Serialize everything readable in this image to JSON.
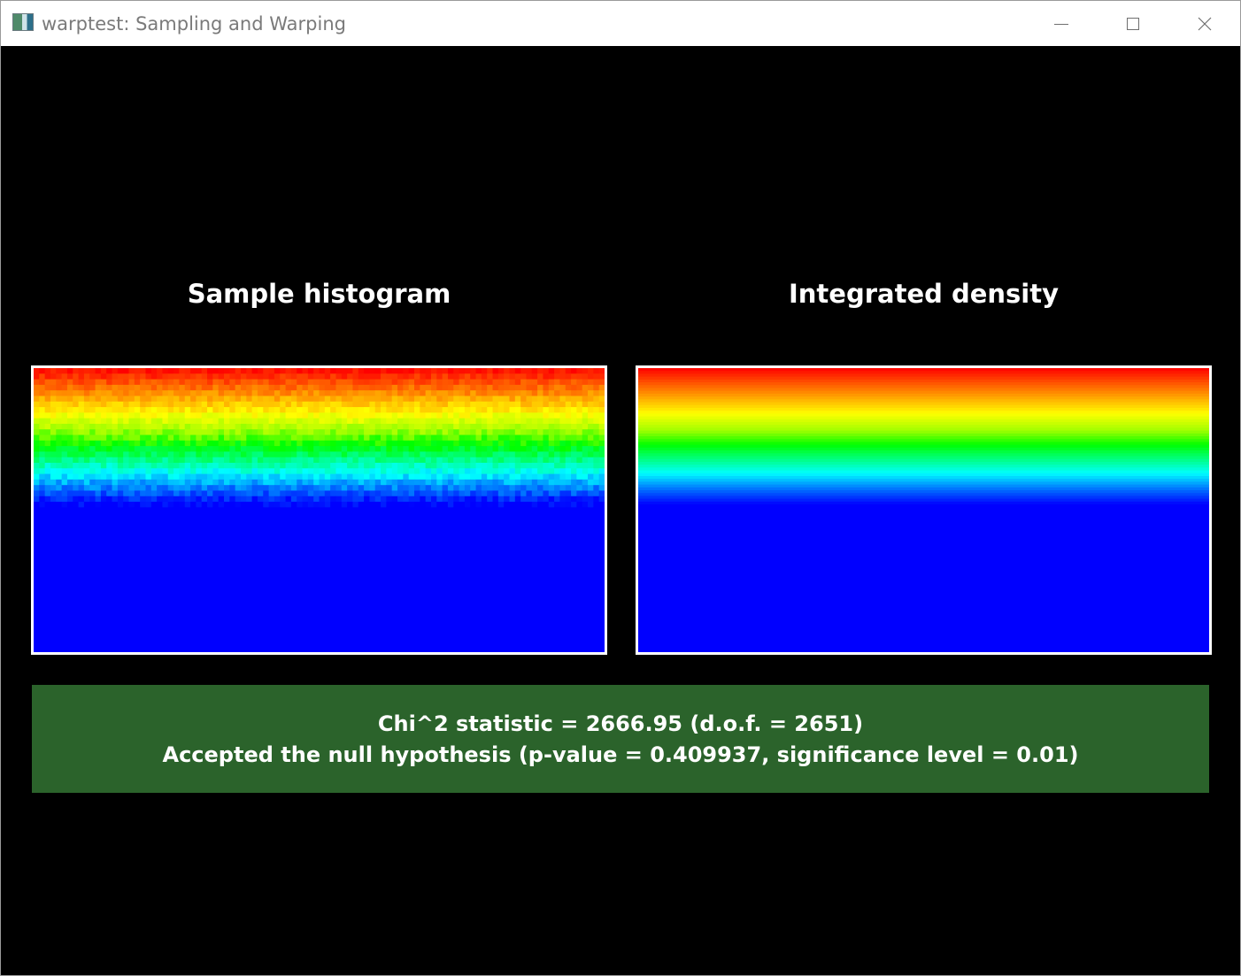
{
  "window": {
    "title": "warptest: Sampling and Warping",
    "icon": "app-icon",
    "controls": [
      "minimize-icon",
      "maximize-icon",
      "close-icon"
    ]
  },
  "panels": {
    "left_title": "Sample histogram",
    "right_title": "Integrated density"
  },
  "result": {
    "line1": "Chi^2 statistic = 2666.95 (d.o.f. = 2651)",
    "line2": "Accepted the null hypothesis (p-value = 0.409937, significance level = 0.01)"
  },
  "colors": {
    "background": "#000000",
    "result_box": "#2b632b",
    "low_density": "#0000ff"
  }
}
